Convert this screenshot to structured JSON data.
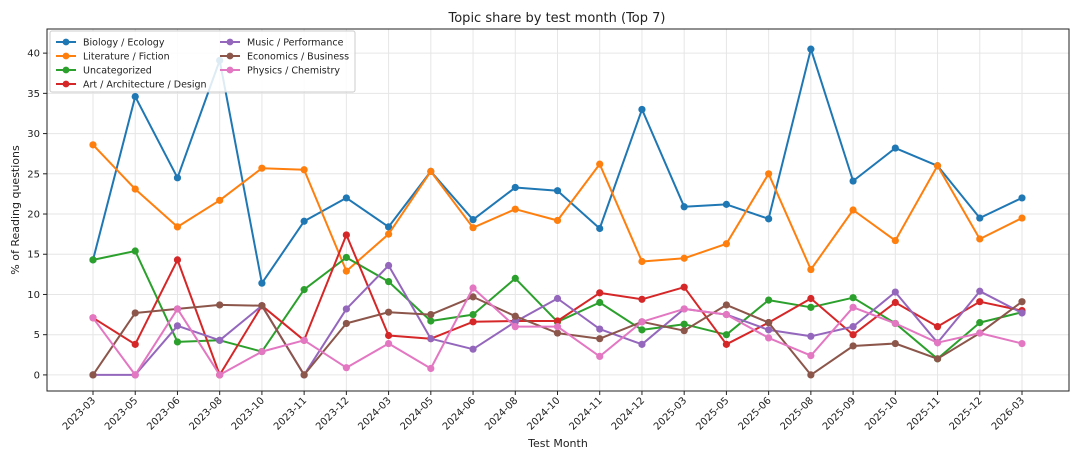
{
  "chart_data": {
    "type": "line",
    "title": "Topic share by test month (Top 7)",
    "xlabel": "Test Month",
    "ylabel": "% of Reading questions",
    "ylim": [
      -2,
      43
    ],
    "yticks": [
      0,
      5,
      10,
      15,
      20,
      25,
      30,
      35,
      40
    ],
    "grid": true,
    "legend_position": "top-left",
    "categories": [
      "2023-03",
      "2023-05",
      "2023-06",
      "2023-08",
      "2023-10",
      "2023-11",
      "2023-12",
      "2024-03",
      "2024-05",
      "2024-06",
      "2024-08",
      "2024-10",
      "2024-11",
      "2024-12",
      "2025-03",
      "2025-05",
      "2025-06",
      "2025-08",
      "2025-09",
      "2025-10",
      "2025-11",
      "2025-12",
      "2026-03"
    ],
    "series": [
      {
        "name": "Biology / Ecology",
        "color": "#1f77b4",
        "values": [
          14.3,
          34.6,
          24.5,
          39.1,
          11.4,
          19.1,
          22.0,
          18.4,
          25.3,
          19.3,
          23.3,
          22.9,
          18.2,
          33.0,
          20.9,
          21.2,
          19.4,
          40.5,
          24.1,
          28.2,
          26.0,
          19.5,
          22.0
        ]
      },
      {
        "name": "Literature / Fiction",
        "color": "#ff7f0e",
        "values": [
          28.6,
          23.1,
          18.4,
          21.7,
          25.7,
          25.5,
          12.9,
          17.5,
          25.3,
          18.3,
          20.6,
          19.2,
          26.2,
          14.1,
          14.5,
          16.3,
          25.0,
          13.1,
          20.5,
          16.7,
          26.0,
          16.9,
          19.5
        ]
      },
      {
        "name": "Uncategorized",
        "color": "#2ca02c",
        "values": [
          14.3,
          15.4,
          4.1,
          4.3,
          2.9,
          10.6,
          14.6,
          11.6,
          6.7,
          7.5,
          12.0,
          6.6,
          9.0,
          5.6,
          6.3,
          5.0,
          9.3,
          8.4,
          9.6,
          6.4,
          2.0,
          6.5,
          7.8
        ]
      },
      {
        "name": "Art / Architecture / Design",
        "color": "#d62728",
        "values": [
          7.1,
          3.8,
          14.3,
          0.0,
          8.6,
          4.3,
          17.4,
          4.9,
          4.5,
          6.6,
          6.7,
          6.7,
          10.2,
          9.4,
          10.9,
          3.8,
          6.5,
          9.5,
          5.0,
          9.0,
          6.0,
          9.1,
          8.0
        ]
      },
      {
        "name": "Music / Performance",
        "color": "#9467bd",
        "values": [
          0.0,
          0.0,
          6.1,
          4.3,
          8.6,
          0.0,
          8.2,
          13.6,
          4.5,
          3.2,
          6.6,
          9.5,
          5.7,
          3.8,
          8.2,
          7.5,
          5.6,
          4.8,
          6.0,
          10.3,
          4.0,
          10.4,
          7.7
        ]
      },
      {
        "name": "Economics / Business",
        "color": "#8c564b",
        "values": [
          0.0,
          7.7,
          8.2,
          8.7,
          8.6,
          0.0,
          6.4,
          7.8,
          7.5,
          9.7,
          7.3,
          5.2,
          4.5,
          6.6,
          5.5,
          8.7,
          6.5,
          0.0,
          3.6,
          3.9,
          2.0,
          5.2,
          9.1
        ]
      },
      {
        "name": "Physics / Chemistry",
        "color": "#e377c2",
        "values": [
          7.1,
          0.0,
          8.2,
          0.0,
          2.9,
          4.3,
          0.9,
          3.9,
          0.8,
          10.8,
          6.0,
          6.0,
          2.3,
          6.6,
          8.2,
          7.5,
          4.6,
          2.4,
          8.4,
          6.4,
          4.0,
          5.2,
          3.9
        ]
      }
    ]
  }
}
